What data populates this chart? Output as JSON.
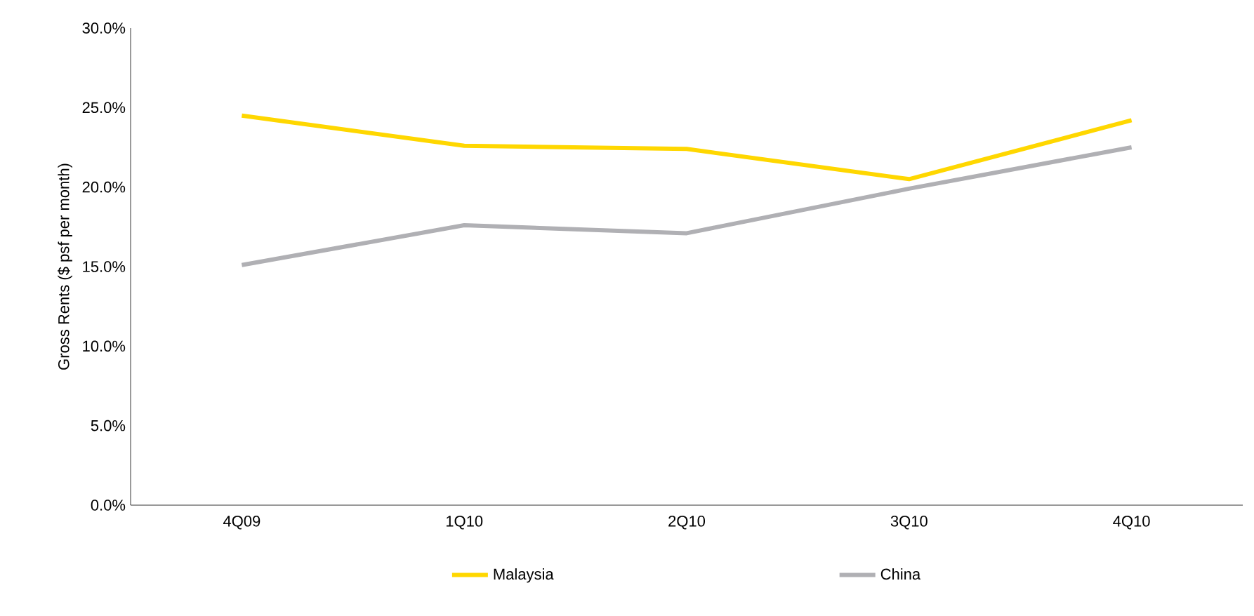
{
  "chart_data": {
    "type": "line",
    "ylabel": "Gross Rents ($ psf per month)",
    "categories": [
      "4Q09",
      "1Q10",
      "2Q10",
      "3Q10",
      "4Q10"
    ],
    "series": [
      {
        "name": "Malaysia",
        "color": "#ffd700",
        "values": [
          24.5,
          22.6,
          22.4,
          20.5,
          24.2
        ]
      },
      {
        "name": "China",
        "color": "#b0b0b4",
        "values": [
          15.1,
          17.6,
          17.1,
          19.9,
          22.5
        ]
      }
    ],
    "ylim": [
      0,
      30
    ],
    "yticks": [
      {
        "value": 0,
        "label": "0.0%"
      },
      {
        "value": 5,
        "label": "5.0%"
      },
      {
        "value": 10,
        "label": "10.0%"
      },
      {
        "value": 15,
        "label": "15.0%"
      },
      {
        "value": 20,
        "label": "20.0%"
      },
      {
        "value": 25,
        "label": "25.0%"
      },
      {
        "value": 30,
        "label": "30.0%"
      }
    ],
    "grid": false,
    "legend": "bottom",
    "marker": "none",
    "line_style": "solid"
  }
}
